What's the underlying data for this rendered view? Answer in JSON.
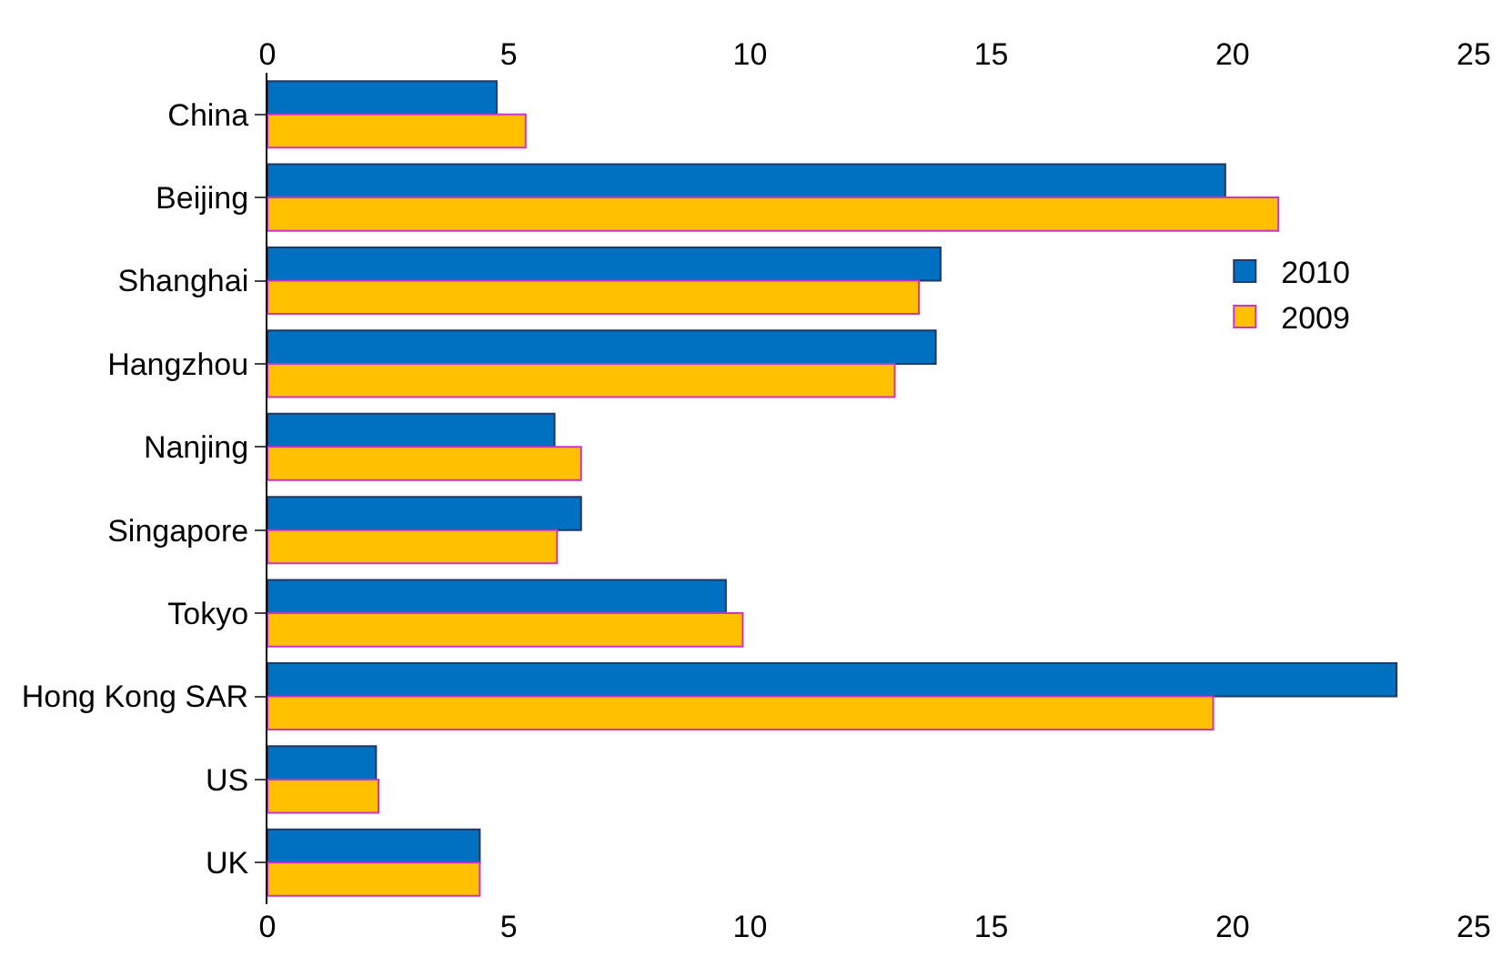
{
  "chart_data": {
    "type": "bar",
    "orientation": "horizontal",
    "categories": [
      "China",
      "Beijing",
      "Shanghai",
      "Hangzhou",
      "Nanjing",
      "Singapore",
      "Tokyo",
      "Hong Kong SAR",
      "US",
      "UK"
    ],
    "series": [
      {
        "name": "2010",
        "color": "#0070c0",
        "values": [
          4.75,
          19.85,
          13.95,
          13.85,
          5.95,
          6.5,
          9.5,
          23.4,
          2.25,
          4.4
        ]
      },
      {
        "name": "2009",
        "color": "#ffc000",
        "values": [
          5.35,
          20.95,
          13.5,
          13.0,
          6.5,
          6.0,
          9.85,
          19.6,
          2.3,
          4.4
        ]
      }
    ],
    "xlim": [
      0,
      25
    ],
    "xticks": [
      0,
      5,
      10,
      15,
      20,
      25
    ],
    "x2lim": [
      0,
      25
    ],
    "x2ticks": [
      0,
      5,
      10,
      15,
      20,
      25
    ],
    "legend": "right"
  }
}
